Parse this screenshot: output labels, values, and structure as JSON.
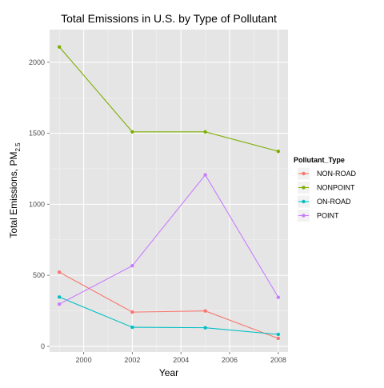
{
  "chart_data": {
    "type": "line",
    "title": "Total Emissions in U.S. by Type of Pollutant",
    "xlabel": "Year",
    "ylabel_main": "Total Emissions, PM",
    "ylabel_sub": "2.5",
    "xlim": [
      1998.6,
      2008.4
    ],
    "ylim": [
      -40,
      2230
    ],
    "x_ticks": [
      2000,
      2002,
      2004,
      2006,
      2008
    ],
    "y_ticks": [
      0,
      500,
      1000,
      1500,
      2000
    ],
    "grid": true,
    "legend_title": "Pollutant_Type",
    "legend_position": "right",
    "x": [
      1999,
      2002,
      2005,
      2008
    ],
    "series": [
      {
        "name": "NON-ROAD",
        "color": "#F8766D",
        "values": [
          522,
          241,
          249,
          56
        ]
      },
      {
        "name": "NONPOINT",
        "color": "#7CAE00",
        "values": [
          2108,
          1510,
          1510,
          1373
        ]
      },
      {
        "name": "ON-ROAD",
        "color": "#00BFC4",
        "values": [
          347,
          134,
          131,
          84
        ]
      },
      {
        "name": "POINT",
        "color": "#C77CFF",
        "values": [
          297,
          567,
          1207,
          345
        ]
      }
    ]
  }
}
